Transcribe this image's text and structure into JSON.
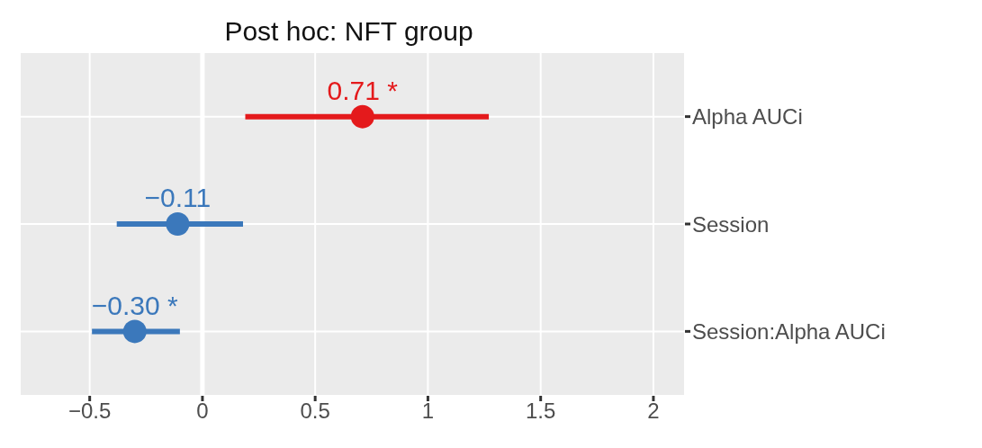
{
  "chart_data": {
    "type": "scatter",
    "orientation": "horizontal",
    "title": "Post hoc: NFT group",
    "categories": [
      "Alpha AUCi",
      "Session",
      "Session:Alpha AUCi"
    ],
    "values": [
      0.71,
      -0.11,
      -0.3
    ],
    "errors": [
      [
        0.19,
        1.27
      ],
      [
        -0.38,
        0.18
      ],
      [
        -0.49,
        -0.1
      ]
    ],
    "colors": [
      "#e41a1c",
      "#3b78bb",
      "#3b78bb"
    ],
    "value_labels": [
      "0.71 *",
      "−0.11",
      "−0.30 *"
    ],
    "xlim": [
      -0.81,
      2.14
    ],
    "xticks": [
      {
        "value": -0.5,
        "label": "−0.5"
      },
      0,
      0.5,
      1,
      1.5,
      2
    ],
    "ref_lines": [
      {
        "axis": "x",
        "value": 0,
        "color": "#ffffff"
      }
    ],
    "grid": true,
    "marker": "circle"
  }
}
